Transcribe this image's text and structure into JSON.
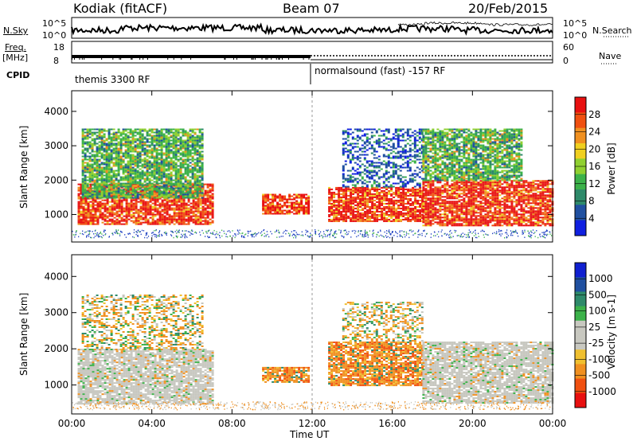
{
  "header": {
    "station": "Kodiak (fitACF)",
    "beam": "Beam 07",
    "date": "20/Feb/2015"
  },
  "top_panels": {
    "nsky_label": "N.Sky",
    "nsky_ticks": [
      "10^5",
      "10^0"
    ],
    "nsearch_label": "N.Search",
    "nsearch_ticks": [
      "10^5",
      "10^0"
    ],
    "freq_label_1": "Freq.",
    "freq_label_2": "[MHz]",
    "freq_ticks": [
      "18",
      "8"
    ],
    "nave_label": "Nave",
    "nave_ticks": [
      "60",
      "0"
    ],
    "cpid_label": "CPID",
    "cpid_segments": [
      {
        "label": "themis 3300 RF",
        "start_hour": 0
      },
      {
        "label": "normalsound (fast) -157 RF",
        "start_hour": 12
      }
    ]
  },
  "colors": {
    "power_scale": [
      "#1020e0",
      "#2050a0",
      "#2e8a6a",
      "#3cb24a",
      "#90d030",
      "#f0d020",
      "#f09020",
      "#f05010",
      "#e81010"
    ],
    "velocity_scale": [
      "#e81010",
      "#f05010",
      "#f09020",
      "#f0c030",
      "#c8c8c0",
      "#c8c8c0",
      "#3cb24a",
      "#2e8a6a",
      "#2050a0",
      "#1020d0"
    ],
    "noise": "#1d3fc0"
  },
  "chart_data": [
    {
      "type": "heatmap",
      "panel": "power",
      "ylabel": "Slant Range [km]",
      "xlabel": "",
      "xlim": [
        0,
        24
      ],
      "ylim": [
        200,
        4600
      ],
      "yticks": [
        "1000",
        "2000",
        "3000",
        "4000"
      ],
      "colorbar": {
        "label": "Power [dB]",
        "ticks": [
          "28",
          "24",
          "20",
          "16",
          "12",
          "8",
          "4"
        ]
      },
      "regions": [
        {
          "x": [
            0.3,
            7.0
          ],
          "y": [
            700,
            1900
          ],
          "level": "high"
        },
        {
          "x": [
            0.5,
            6.5
          ],
          "y": [
            1500,
            3500
          ],
          "level": "mid"
        },
        {
          "x": [
            9.5,
            11.8
          ],
          "y": [
            1000,
            1600
          ],
          "level": "high"
        },
        {
          "x": [
            12.8,
            17.5
          ],
          "y": [
            800,
            1800
          ],
          "level": "high"
        },
        {
          "x": [
            13.5,
            17.5
          ],
          "y": [
            1800,
            3500
          ],
          "level": "low"
        },
        {
          "x": [
            17.5,
            24.0
          ],
          "y": [
            700,
            2000
          ],
          "level": "high"
        },
        {
          "x": [
            17.5,
            22.5
          ],
          "y": [
            2000,
            3500
          ],
          "level": "mid"
        }
      ]
    },
    {
      "type": "heatmap",
      "panel": "velocity",
      "ylabel": "Slant Range [km]",
      "xlabel": "Time UT",
      "xlim": [
        0,
        24
      ],
      "ylim": [
        200,
        4600
      ],
      "xticks": [
        "00:00",
        "04:00",
        "08:00",
        "12:00",
        "16:00",
        "20:00",
        "00:00"
      ],
      "yticks": [
        "1000",
        "2000",
        "3000",
        "4000"
      ],
      "colorbar": {
        "label": "Velocity [m s-1]",
        "ticks": [
          "1000",
          "500",
          "100",
          "25",
          "-25",
          "-100",
          "-500",
          "-1000"
        ]
      },
      "regions": [
        {
          "x": [
            0.3,
            7.0
          ],
          "y": [
            500,
            2000
          ],
          "level": "ground"
        },
        {
          "x": [
            0.5,
            6.5
          ],
          "y": [
            2000,
            3500
          ],
          "level": "mixed"
        },
        {
          "x": [
            9.5,
            11.8
          ],
          "y": [
            1100,
            1500
          ],
          "level": "negative"
        },
        {
          "x": [
            12.8,
            17.5
          ],
          "y": [
            1000,
            2200
          ],
          "level": "negative"
        },
        {
          "x": [
            13.5,
            17.5
          ],
          "y": [
            2200,
            3300
          ],
          "level": "mixed"
        },
        {
          "x": [
            17.5,
            24.0
          ],
          "y": [
            500,
            2200
          ],
          "level": "ground"
        }
      ]
    }
  ]
}
